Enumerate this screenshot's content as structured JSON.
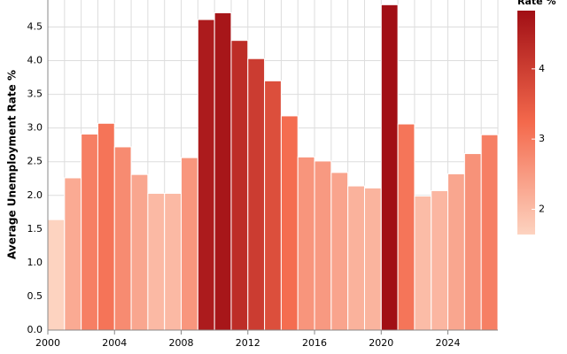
{
  "chart_data": {
    "type": "bar",
    "y_label": "Average Unemployment Rate %",
    "categories": [
      "2000",
      null,
      null,
      null,
      "2004",
      null,
      null,
      null,
      "2008",
      null,
      null,
      null,
      "2012",
      null,
      null,
      null,
      "2016",
      null,
      null,
      null,
      "2020",
      null,
      null,
      null,
      "2024",
      null,
      null
    ],
    "values": [
      1.64,
      2.26,
      2.91,
      3.07,
      2.72,
      2.31,
      2.03,
      2.03,
      2.56,
      4.61,
      4.71,
      4.3,
      4.03,
      3.7,
      3.18,
      2.57,
      2.51,
      2.34,
      2.14,
      2.11,
      4.83,
      3.06,
      1.99,
      2.07,
      2.32,
      2.62,
      2.9
    ],
    "ylim": [
      0,
      4.9
    ],
    "yticks": [
      {
        "value": 0,
        "label": "0.0"
      },
      0.5,
      {
        "value": 1,
        "label": "1.0"
      },
      1.5,
      {
        "value": 2,
        "label": "2.0"
      },
      2.5,
      {
        "value": 3,
        "label": "3.0"
      },
      3.5,
      {
        "value": 4,
        "label": "4.0"
      },
      4.5
    ],
    "grid": true,
    "colors": [
      "#fdd3c0",
      "#f4694c",
      "#a10f15"
    ],
    "legend": {
      "title": "Rate %",
      "ticks": [
        2,
        3,
        4
      ]
    }
  }
}
